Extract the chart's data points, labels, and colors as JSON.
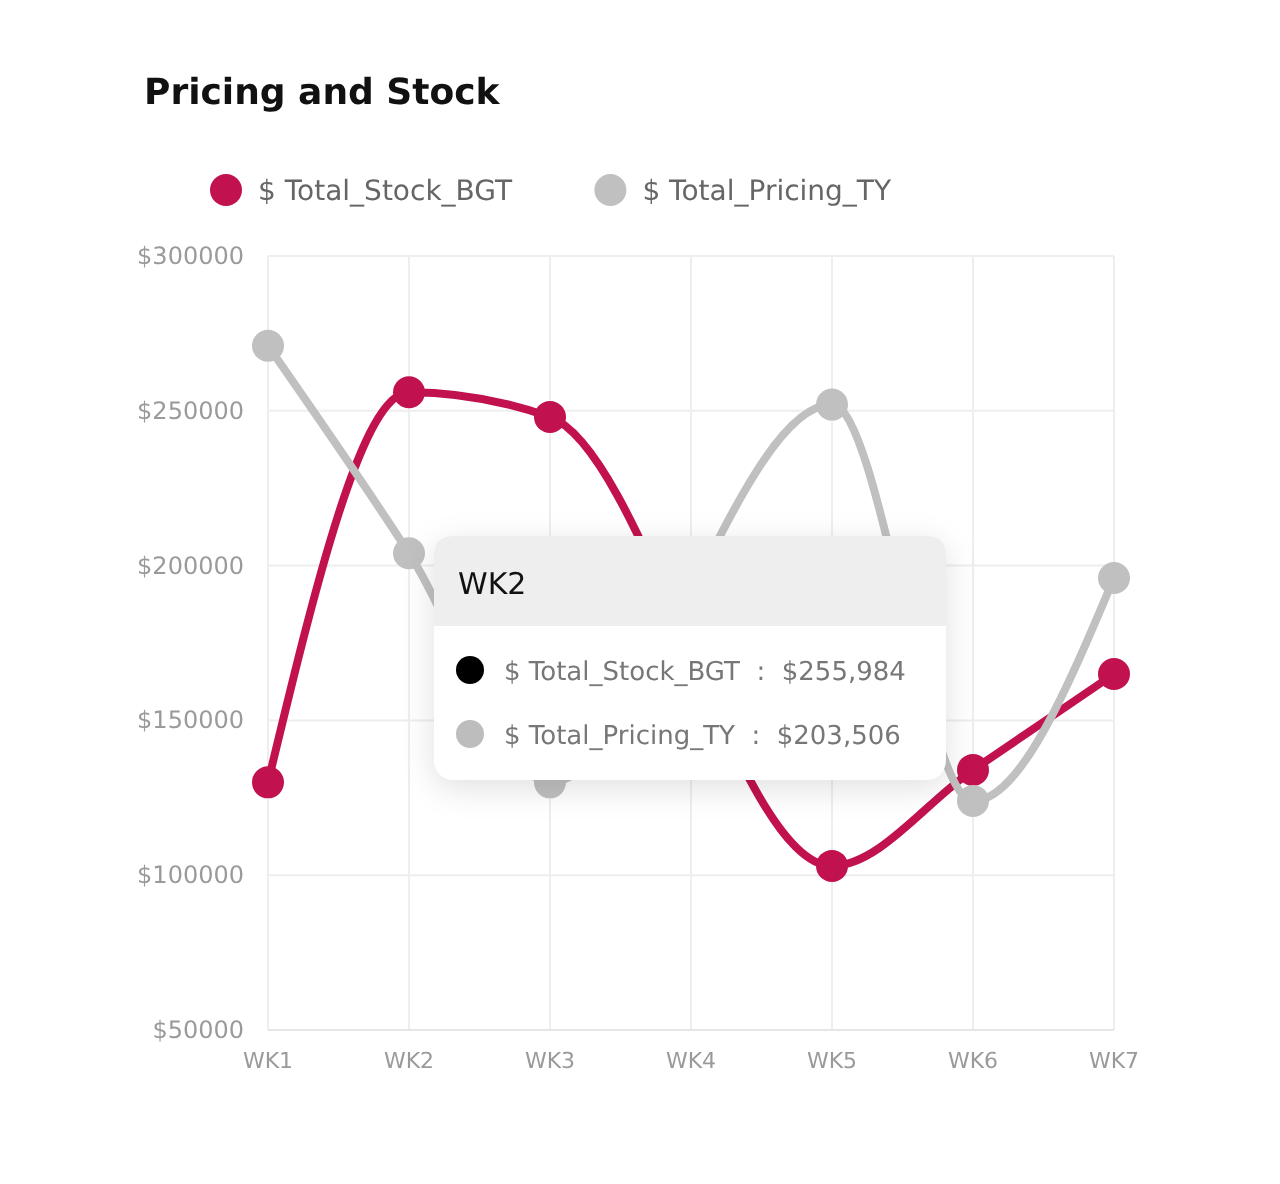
{
  "chart_data": {
    "type": "line",
    "title": "Pricing and Stock",
    "categories": [
      "WK1",
      "WK2",
      "WK3",
      "WK4",
      "WK5",
      "WK6",
      "WK7"
    ],
    "series": [
      {
        "name": "$ Total_Stock_BGT",
        "color": "#c2114f",
        "values": [
          130000,
          256000,
          248000,
          null,
          103000,
          134000,
          165000
        ]
      },
      {
        "name": "$ Total_Pricing_TY",
        "color": "#c0c0c0",
        "values": [
          271000,
          204000,
          130000,
          null,
          252000,
          124000,
          196000
        ]
      }
    ],
    "ylim": [
      50000,
      300000
    ],
    "yticks": [
      {
        "value": 50000,
        "label": "$50000"
      },
      {
        "value": 100000,
        "label": "$100000"
      },
      {
        "value": 150000,
        "label": "$150000"
      },
      {
        "value": 200000,
        "label": "$200000"
      },
      {
        "value": 250000,
        "label": "$250000"
      },
      {
        "value": 300000,
        "label": "$300000"
      }
    ],
    "grid": true,
    "legend": "top left",
    "marker": "circle",
    "line_style": "solid",
    "annotations": [
      "WK2",
      "$ Total_Stock_BGT  :  $255,984",
      "$ Total_Pricing_TY  :  $203,506"
    ]
  }
}
